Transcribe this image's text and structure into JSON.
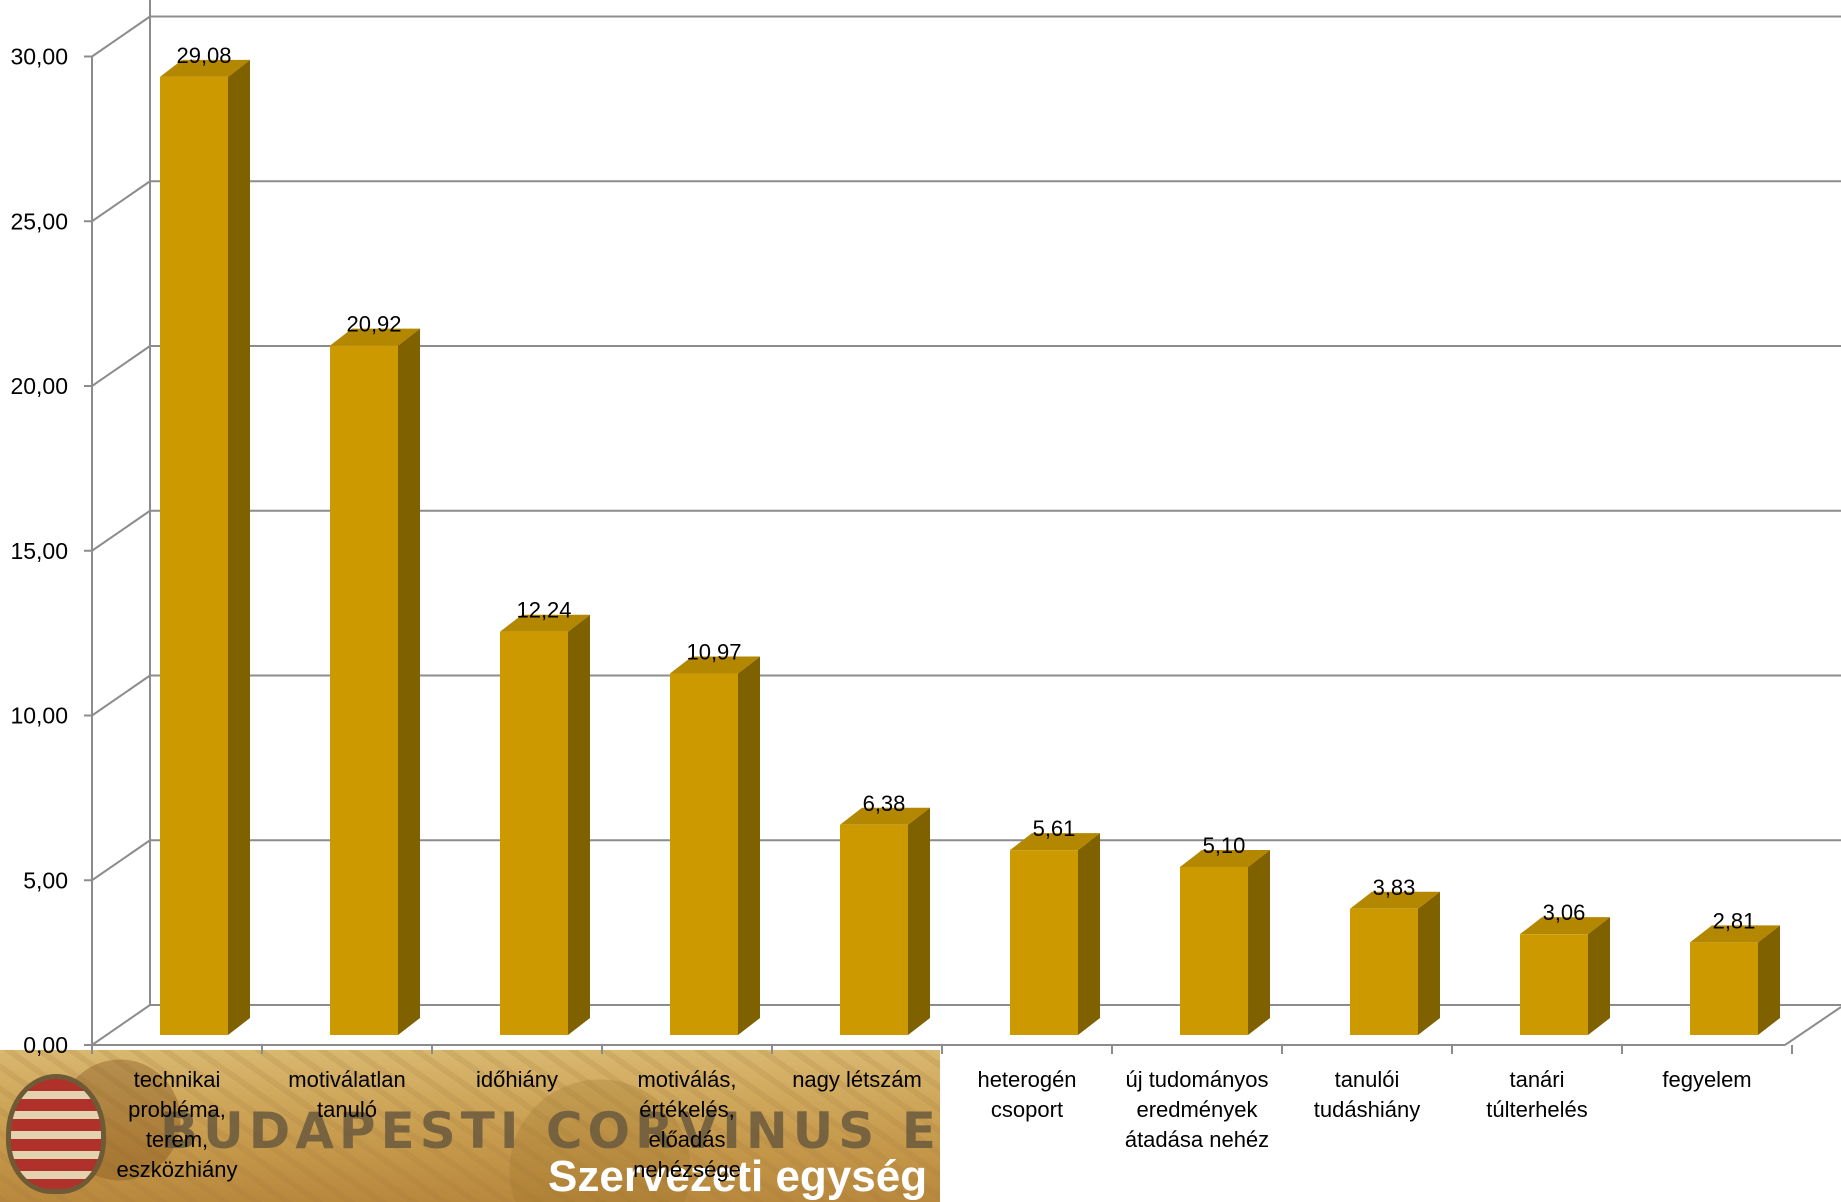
{
  "chart_data": {
    "type": "bar",
    "categories": [
      [
        "technikai",
        "probléma,",
        "terem,",
        "eszközhiány"
      ],
      [
        "motiválatlan",
        "tanuló"
      ],
      [
        "időhiány"
      ],
      [
        "motiválás,",
        "értékelés,",
        "előadás",
        "nehézsége"
      ],
      [
        "nagy létszám"
      ],
      [
        "heterogén",
        "csoport"
      ],
      [
        "új tudományos",
        "eredmények",
        "átadása nehéz"
      ],
      [
        "tanulói",
        "tudáshiány"
      ],
      [
        "tanári",
        "túlterhelés"
      ],
      [
        "fegyelem"
      ]
    ],
    "values": [
      29.08,
      20.92,
      12.24,
      10.97,
      6.38,
      5.61,
      5.1,
      3.83,
      3.06,
      2.81
    ],
    "value_labels": [
      "29,08",
      "20,92",
      "12,24",
      "10,97",
      "6,38",
      "5,61",
      "5,10",
      "3,83",
      "3,06",
      "2,81"
    ],
    "y_ticks": [
      "0,00",
      "5,00",
      "10,00",
      "15,00",
      "20,00",
      "25,00",
      "30,00"
    ],
    "ylim": [
      0,
      30
    ],
    "grid": true,
    "colors": {
      "front": "#CC9A00",
      "side": "#7F6100",
      "top": "#B38700",
      "grid": "#8C8C8C"
    }
  },
  "banner": {
    "title": "BUDAPESTI CORVINUS EGYETEM",
    "subtitle": "Szervezeti egység"
  }
}
